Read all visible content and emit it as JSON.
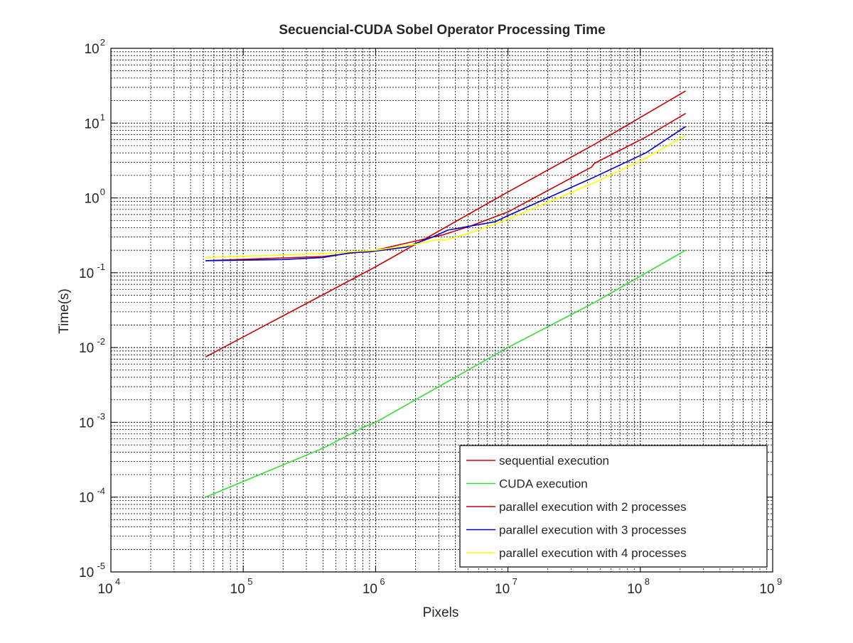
{
  "chart_data": {
    "type": "line",
    "title": "Secuencial-CUDA Sobel Operator Processing Time",
    "xlabel": "Pixels",
    "ylabel": "Time(s)",
    "xscale": "log",
    "yscale": "log",
    "xlim": [
      10000,
      1000000000
    ],
    "ylim": [
      1e-05,
      100
    ],
    "grid": true,
    "minor_grid": true,
    "legend_position": "bottom-right",
    "x_ticks": [
      {
        "base": "10",
        "exp": "4",
        "value": 10000
      },
      {
        "base": "10",
        "exp": "5",
        "value": 100000
      },
      {
        "base": "10",
        "exp": "6",
        "value": 1000000
      },
      {
        "base": "10",
        "exp": "7",
        "value": 10000000
      },
      {
        "base": "10",
        "exp": "8",
        "value": 100000000
      },
      {
        "base": "10",
        "exp": "9",
        "value": 1000000000
      }
    ],
    "y_ticks": [
      {
        "base": "10",
        "exp": "-5",
        "value": 1e-05
      },
      {
        "base": "10",
        "exp": "-4",
        "value": 0.0001
      },
      {
        "base": "10",
        "exp": "-3",
        "value": 0.001
      },
      {
        "base": "10",
        "exp": "-2",
        "value": 0.01
      },
      {
        "base": "10",
        "exp": "-1",
        "value": 0.1
      },
      {
        "base": "10",
        "exp": "0",
        "value": 1
      },
      {
        "base": "10",
        "exp": "1",
        "value": 10
      },
      {
        "base": "10",
        "exp": "2",
        "value": 100
      }
    ],
    "series": [
      {
        "name": "sequential execution",
        "color": "#cc0000",
        "x": [
          52000,
          1000000,
          10000000,
          45000000,
          220000000
        ],
        "y": [
          0.0075,
          0.12,
          1.2,
          5.2,
          27
        ]
      },
      {
        "name": "CUDA execution",
        "color": "#33dd33",
        "x": [
          52000,
          400000,
          800000,
          1000000,
          10000000,
          45000000,
          220000000
        ],
        "y": [
          0.0001,
          0.00045,
          0.00085,
          0.001,
          0.01,
          0.04,
          0.2
        ]
      },
      {
        "name": "parallel execution with 2 processes",
        "color": "#cc0000",
        "x": [
          52000,
          400000,
          1000000,
          2100000,
          3200000,
          5200000,
          10000000,
          43000000,
          45000000,
          110000000,
          220000000
        ],
        "y": [
          0.145,
          0.165,
          0.2,
          0.27,
          0.32,
          0.42,
          0.65,
          2.6,
          2.9,
          6.5,
          13.5
        ]
      },
      {
        "name": "parallel execution with 3 processes",
        "color": "#0000cc",
        "x": [
          52000,
          200000,
          400000,
          650000,
          900000,
          1700000,
          2700000,
          3500000,
          5200000,
          8000000,
          10000000,
          45000000,
          110000000,
          220000000
        ],
        "y": [
          0.145,
          0.15,
          0.16,
          0.185,
          0.19,
          0.22,
          0.3,
          0.37,
          0.42,
          0.48,
          0.58,
          1.9,
          4.0,
          9.0
        ]
      },
      {
        "name": "parallel execution with 4 processes",
        "color": "#ffff00",
        "x": [
          52000,
          400000,
          1000000,
          2000000,
          3000000,
          3300000,
          5200000,
          8000000,
          10000000,
          45000000,
          110000000,
          220000000
        ],
        "y": [
          0.16,
          0.18,
          0.2,
          0.24,
          0.28,
          0.27,
          0.34,
          0.45,
          0.52,
          1.6,
          3.4,
          6.8
        ]
      }
    ]
  }
}
